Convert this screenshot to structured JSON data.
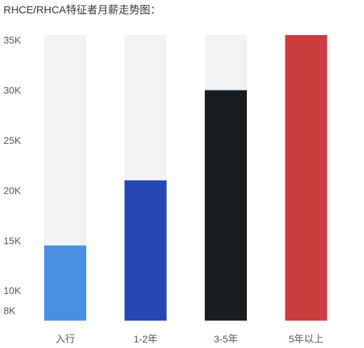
{
  "title": "RHCE/RHCA特征者月薪走势图：",
  "chart_data": {
    "type": "bar",
    "title": "RHCE/RHCA特征者月薪走势图：",
    "categories": [
      "入行",
      "1-2年",
      "3-5年",
      "5年以上"
    ],
    "values": [
      14500,
      21000,
      30000,
      35500
    ],
    "bar_colors": [
      "#4a90e2",
      "#2547b3",
      "#1b1e21",
      "#cc3d3f"
    ],
    "track_color": "#f1f2f4",
    "y_ticks": [
      {
        "value": 8000,
        "label": "8K"
      },
      {
        "value": 10000,
        "label": "10K"
      },
      {
        "value": 15000,
        "label": "15K"
      },
      {
        "value": 20000,
        "label": "20K"
      },
      {
        "value": 25000,
        "label": "25K"
      },
      {
        "value": 30000,
        "label": "30K"
      },
      {
        "value": 35000,
        "label": "35K"
      }
    ],
    "ylim": [
      7000,
      35500
    ],
    "xlabel": "",
    "ylabel": "",
    "grid": false,
    "legend": "none"
  }
}
